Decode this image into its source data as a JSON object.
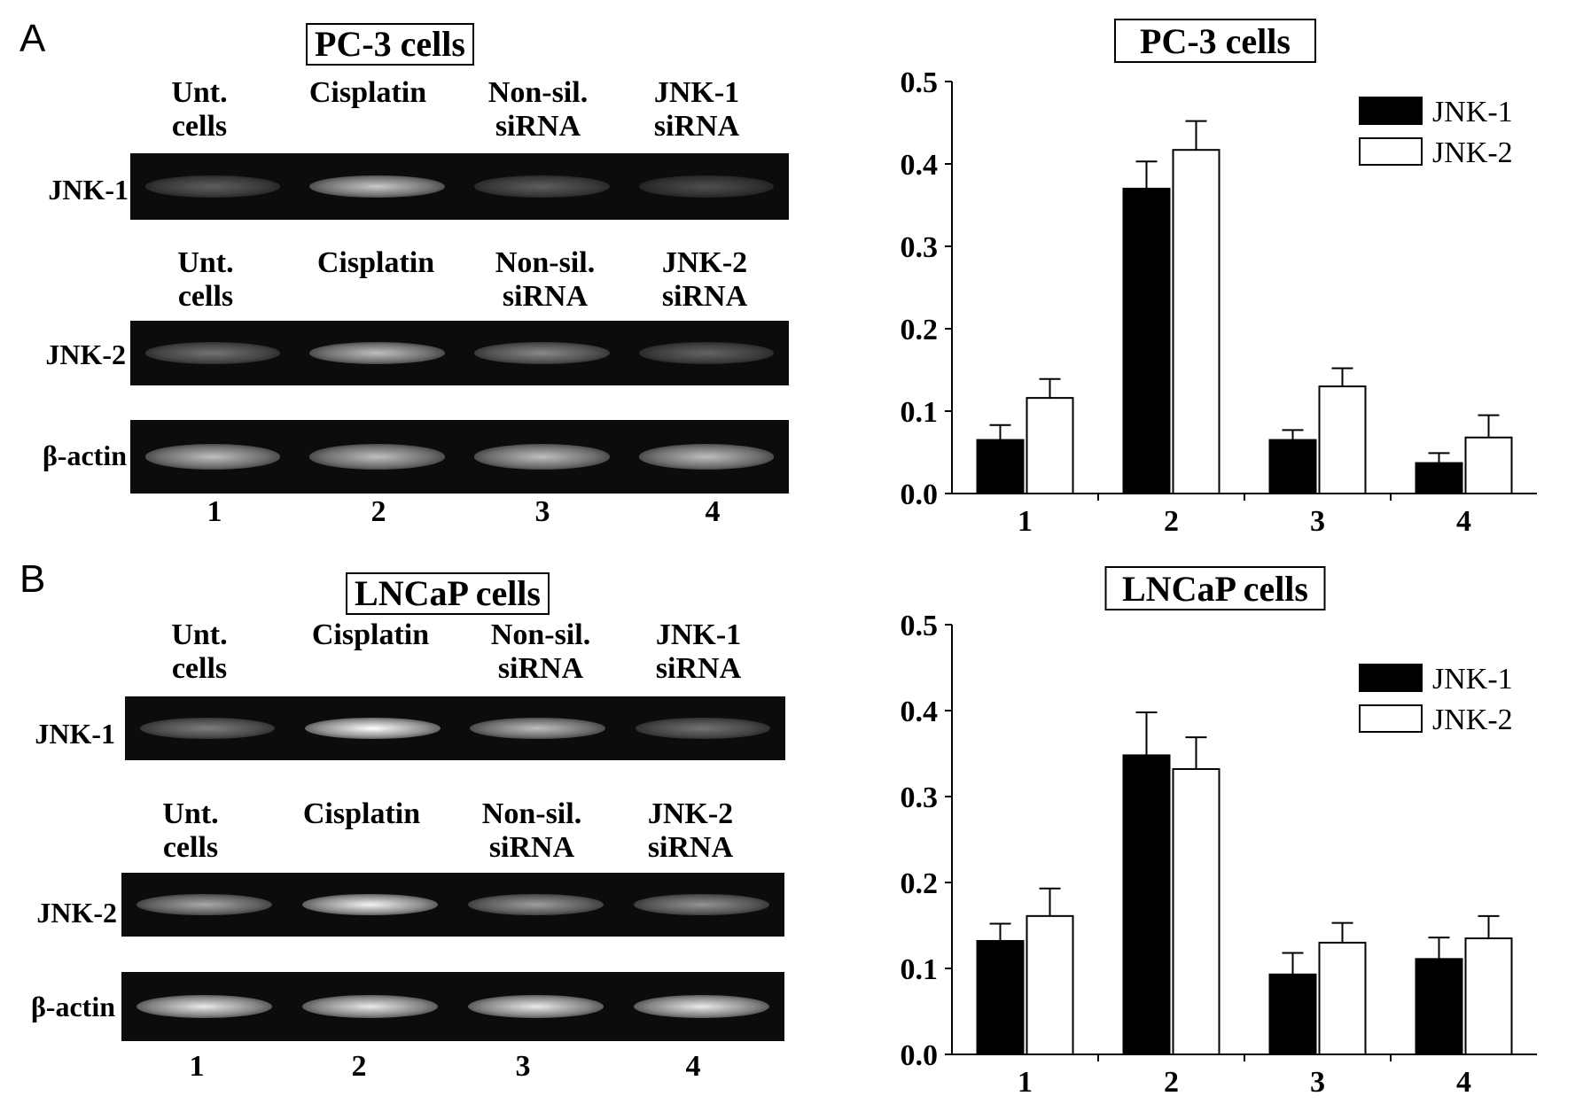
{
  "panels": [
    {
      "id": "A",
      "letter": "A",
      "gel_title": "PC-3 cells",
      "gel1_lanes": [
        "Unt.\ncells",
        "Cisplatin",
        "Non-sil.\nsiRNA",
        "JNK-1\nsiRNA"
      ],
      "gel2_lanes": [
        "Unt.\ncells",
        "Cisplatin",
        "Non-sil.\nsiRNA",
        "JNK-2\nsiRNA"
      ],
      "rows": [
        "JNK-1",
        "JNK-2",
        "β-actin"
      ],
      "lane_numbers": [
        "1",
        "2",
        "3",
        "4"
      ],
      "band_intensity": {
        "JNK-1": [
          0.25,
          0.75,
          0.25,
          0.18
        ],
        "JNK-2": [
          0.35,
          0.7,
          0.45,
          0.28
        ],
        "β-actin": [
          0.7,
          0.7,
          0.7,
          0.7
        ]
      }
    },
    {
      "id": "B",
      "letter": "B",
      "gel_title": "LNCaP cells",
      "gel1_lanes": [
        "Unt.\ncells",
        "Cisplatin",
        "Non-sil.\nsiRNA",
        "JNK-1\nsiRNA"
      ],
      "gel2_lanes": [
        "Unt.\ncells",
        "Cisplatin",
        "Non-sil.\nsiRNA",
        "JNK-2\nsiRNA"
      ],
      "rows": [
        "JNK-1",
        "JNK-2",
        "β-actin"
      ],
      "lane_numbers": [
        "1",
        "2",
        "3",
        "4"
      ],
      "band_intensity": {
        "JNK-1": [
          0.4,
          1.0,
          0.7,
          0.35
        ],
        "JNK-2": [
          0.6,
          0.95,
          0.55,
          0.5
        ],
        "β-actin": [
          0.9,
          0.9,
          0.9,
          0.9
        ]
      }
    }
  ],
  "chart_data": [
    {
      "type": "bar",
      "title": "PC-3 cells",
      "categories": [
        "1",
        "2",
        "3",
        "4"
      ],
      "series": [
        {
          "name": "JNK-1",
          "values": [
            0.065,
            0.37,
            0.065,
            0.037
          ],
          "errors": [
            0.018,
            0.033,
            0.012,
            0.012
          ],
          "color": "#000000"
        },
        {
          "name": "JNK-2",
          "values": [
            0.116,
            0.417,
            0.13,
            0.068
          ],
          "errors": [
            0.023,
            0.035,
            0.022,
            0.027
          ],
          "color": "#ffffff"
        }
      ],
      "ylim": [
        0,
        0.5
      ],
      "yticks": [
        "0.0",
        "0.1",
        "0.2",
        "0.3",
        "0.4",
        "0.5"
      ],
      "legend": "top-right",
      "grid": false
    },
    {
      "type": "bar",
      "title": "LNCaP cells",
      "categories": [
        "1",
        "2",
        "3",
        "4"
      ],
      "series": [
        {
          "name": "JNK-1",
          "values": [
            0.132,
            0.348,
            0.093,
            0.111
          ],
          "errors": [
            0.02,
            0.05,
            0.025,
            0.025
          ],
          "color": "#000000"
        },
        {
          "name": "JNK-2",
          "values": [
            0.161,
            0.332,
            0.13,
            0.135
          ],
          "errors": [
            0.032,
            0.037,
            0.023,
            0.026
          ],
          "color": "#ffffff"
        }
      ],
      "ylim": [
        0,
        0.5
      ],
      "yticks": [
        "0.0",
        "0.1",
        "0.2",
        "0.3",
        "0.4",
        "0.5"
      ],
      "legend": "top-right",
      "grid": false
    }
  ]
}
